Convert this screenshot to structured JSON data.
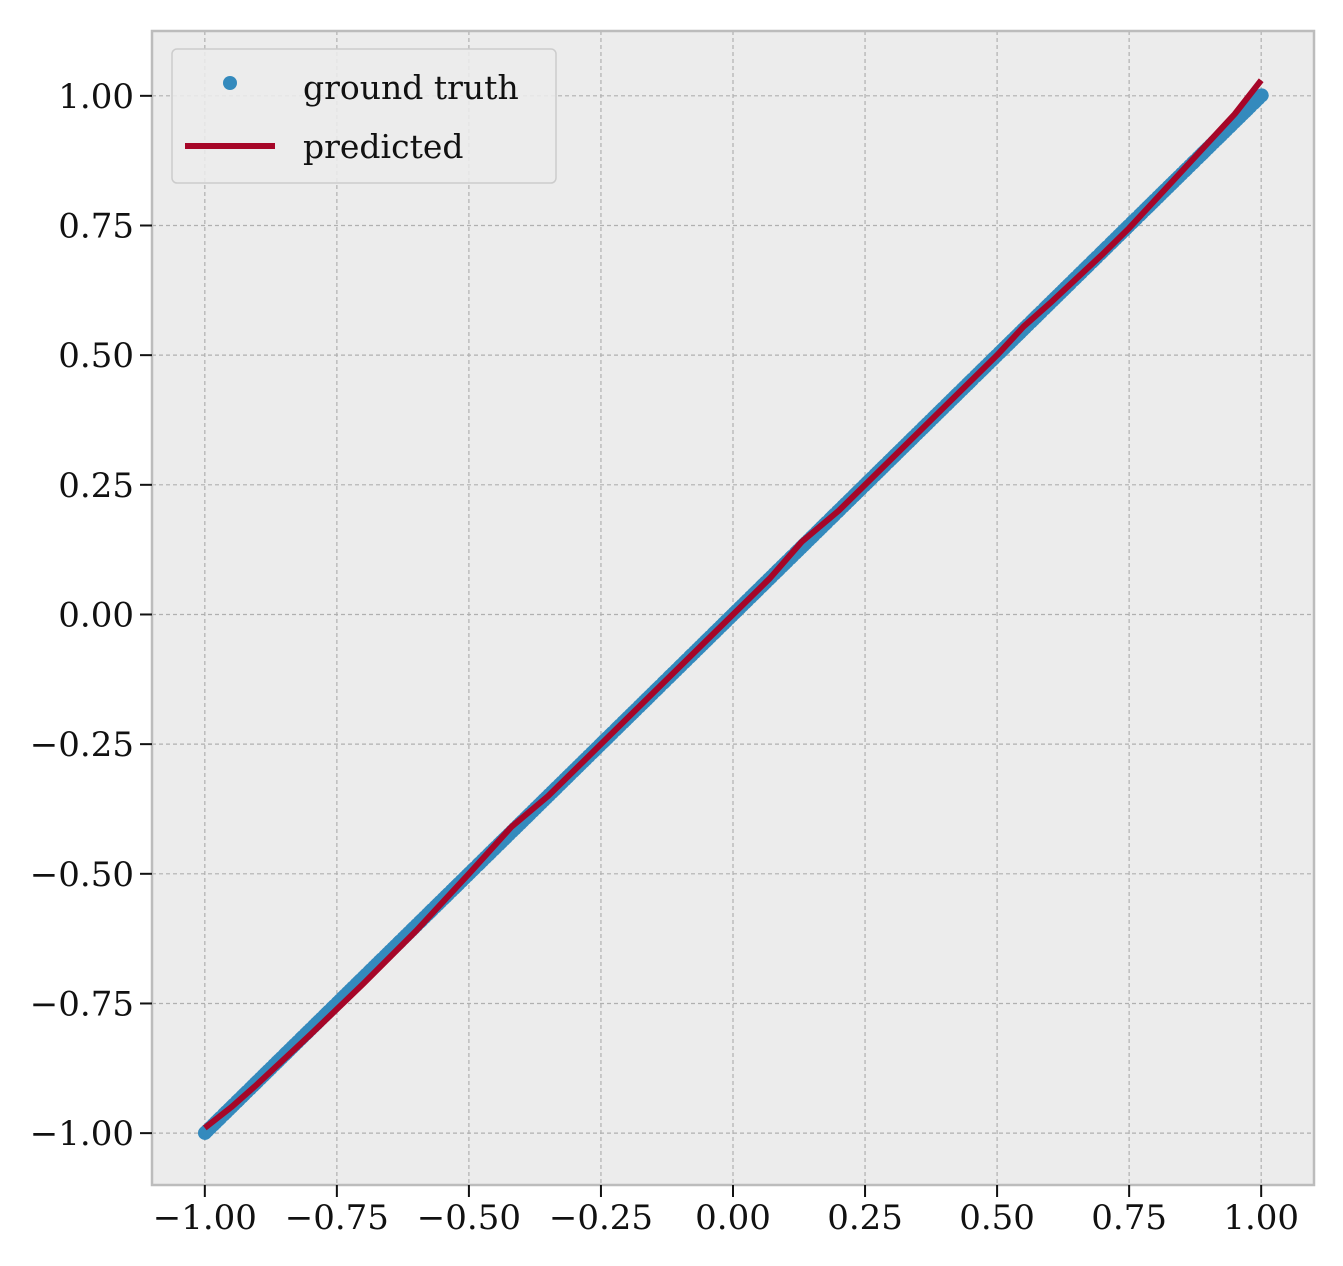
{
  "chart_data": {
    "type": "scatter",
    "title": "",
    "xlabel": "",
    "ylabel": "",
    "xlim": [
      -1.1,
      1.1
    ],
    "ylim": [
      -1.1,
      1.125
    ],
    "grid": true,
    "legend_position": "top-left",
    "x_ticks": [
      -1.0,
      -0.75,
      -0.5,
      -0.25,
      0.0,
      0.25,
      0.5,
      0.75,
      1.0
    ],
    "x_tick_labels": [
      "−1.00",
      "−0.75",
      "−0.50",
      "−0.25",
      "0.00",
      "0.25",
      "0.50",
      "0.75",
      "1.00"
    ],
    "y_ticks": [
      1.0,
      0.75,
      0.5,
      0.25,
      0.0,
      -0.25,
      -0.5,
      -0.75,
      -1.0
    ],
    "y_tick_labels": [
      "1.00",
      "0.75",
      "0.50",
      "0.25",
      "0.00",
      "−0.25",
      "−0.50",
      "−0.75",
      "−1.00"
    ],
    "colors": {
      "background": "#ececec",
      "grid": "#b0b0b0",
      "frame": "#bcbcbc",
      "ground_truth": "#348abd",
      "predicted": "#a60628"
    },
    "series": [
      {
        "name": "ground truth",
        "style": "markers",
        "x_range": [
          -1.0,
          1.0
        ],
        "y_equals_x": true,
        "num_points": 400
      },
      {
        "name": "predicted",
        "style": "line",
        "x": [
          -1.0,
          -0.95,
          -0.9,
          -0.8,
          -0.7,
          -0.6,
          -0.5,
          -0.42,
          -0.35,
          -0.25,
          -0.15,
          -0.05,
          0.0,
          0.07,
          0.13,
          0.2,
          0.3,
          0.4,
          0.5,
          0.55,
          0.6,
          0.7,
          0.75,
          0.8,
          0.85,
          0.9,
          0.95,
          1.0
        ],
        "y": [
          -0.99,
          -0.95,
          -0.905,
          -0.81,
          -0.712,
          -0.61,
          -0.5,
          -0.41,
          -0.35,
          -0.25,
          -0.15,
          -0.05,
          0.0,
          0.07,
          0.14,
          0.2,
          0.3,
          0.4,
          0.5,
          0.555,
          0.6,
          0.695,
          0.745,
          0.8,
          0.855,
          0.91,
          0.965,
          1.03
        ]
      }
    ]
  }
}
